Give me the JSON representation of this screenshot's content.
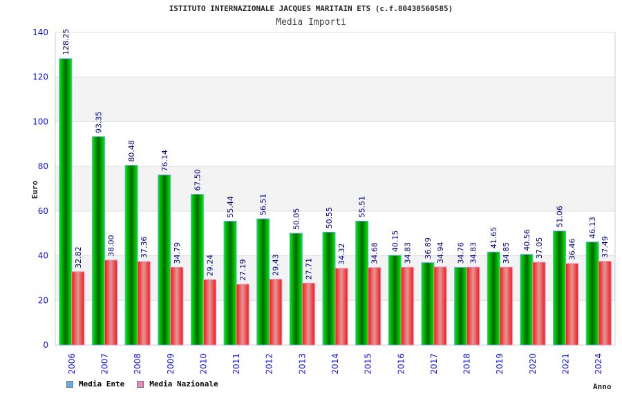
{
  "chart_data": {
    "type": "bar",
    "title": "ISTITUTO INTERNAZIONALE JACQUES MARITAIN ETS (c.f.80438560585)",
    "subtitle": "Media Importi",
    "xlabel": "Anno",
    "ylabel": "Euro",
    "ylim": [
      0,
      140
    ],
    "yticks": [
      "0",
      "20",
      "40",
      "60",
      "80",
      "100",
      "120",
      "140"
    ],
    "categories": [
      "2006",
      "2007",
      "2008",
      "2009",
      "2010",
      "2011",
      "2012",
      "2013",
      "2014",
      "2015",
      "2016",
      "2017",
      "2018",
      "2019",
      "2020",
      "2021",
      "2024"
    ],
    "series": [
      {
        "name": "Media Ente",
        "color": "#00aa00",
        "legend_color": "#66aaee",
        "values": [
          128.25,
          93.35,
          80.48,
          76.14,
          67.5,
          55.44,
          56.51,
          50.05,
          50.55,
          55.51,
          40.15,
          36.89,
          34.76,
          41.65,
          40.56,
          51.06,
          46.13
        ]
      },
      {
        "name": "Media Nazionale",
        "color": "#ee2222",
        "legend_color": "#ee88bb",
        "values": [
          32.82,
          38.0,
          37.36,
          34.79,
          29.24,
          27.19,
          29.43,
          27.71,
          34.32,
          34.68,
          34.83,
          34.94,
          34.83,
          34.85,
          37.05,
          36.46,
          37.49
        ]
      }
    ],
    "grid": true,
    "legend": "bottom-left"
  }
}
